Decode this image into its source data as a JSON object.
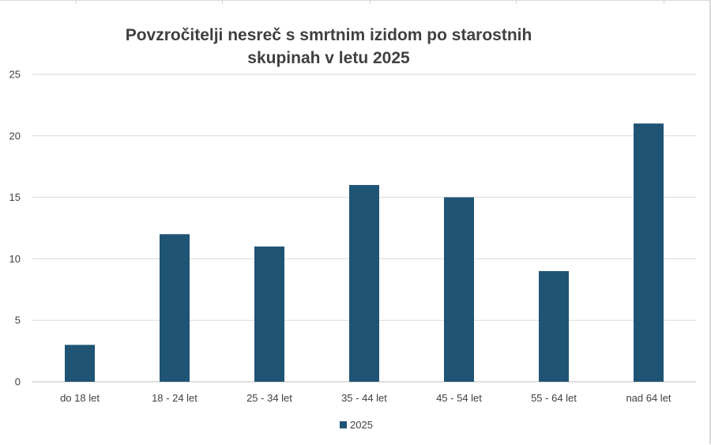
{
  "chart_data": {
    "type": "bar",
    "title": "Povzročitelji nesreč s smrtnim izidom po starostnih skupinah v letu 2025",
    "title_lines": [
      "Povzročitelji nesreč s smrtnim izidom po starostnih",
      "skupinah v letu 2025"
    ],
    "categories": [
      "do 18 let",
      "18 - 24 let",
      "25 - 34 let",
      "35 - 44 let",
      "45 - 54 let",
      "55 - 64 let",
      "nad 64 let"
    ],
    "series": [
      {
        "name": "2025",
        "values": [
          3,
          12,
          11,
          16,
          15,
          9,
          21
        ],
        "color": "#1f5475"
      }
    ],
    "yticks": [
      "0",
      "5",
      "10",
      "15",
      "20",
      "25"
    ],
    "ylim": [
      0,
      25
    ],
    "xlabel": "",
    "ylabel": "",
    "grid": true,
    "legend_position": "bottom"
  }
}
